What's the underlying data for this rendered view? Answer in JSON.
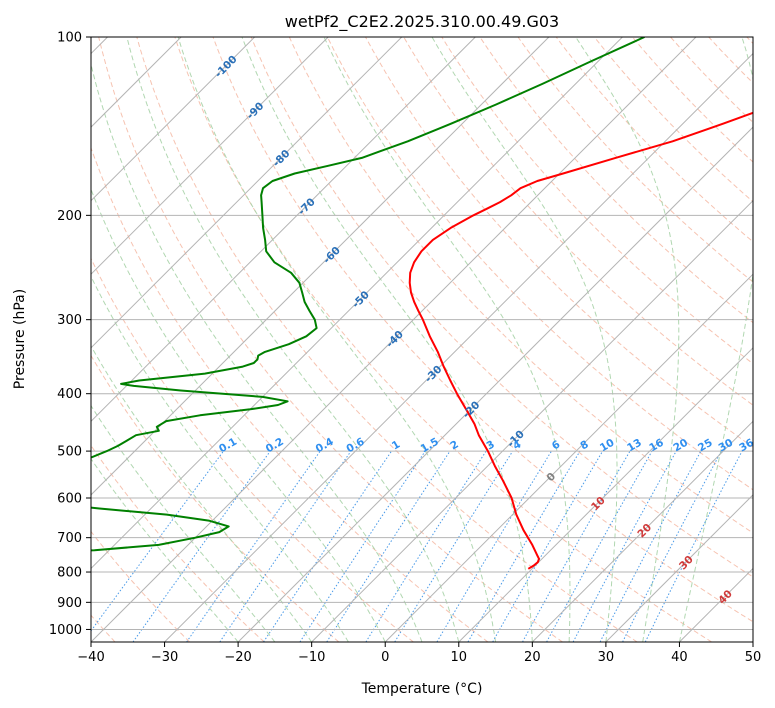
{
  "chart_data": {
    "type": "line",
    "subtype": "skew-t log-p diagram",
    "title": "wetPf2_C2E2.2025.310.00.49.G03",
    "xlabel": "Temperature (°C)",
    "ylabel": "Pressure (hPa)",
    "xlim": [
      -40,
      50
    ],
    "ylim": [
      1050,
      100
    ],
    "y_scale": "log",
    "grid": true,
    "x_ticks": [
      "−40",
      "−30",
      "−20",
      "−10",
      "0",
      "10",
      "20",
      "30",
      "40",
      "50"
    ],
    "y_ticks": [
      "100",
      "200",
      "300",
      "400",
      "500",
      "600",
      "700",
      "800",
      "900",
      "1000"
    ],
    "y_tick_values": [
      100,
      200,
      300,
      400,
      500,
      600,
      700,
      800,
      900,
      1000
    ],
    "isotherm_labels": [
      "-100",
      "-90",
      "-80",
      "-70",
      "-60",
      "-50",
      "-40",
      "-30",
      "-20",
      "-10",
      "0",
      "10",
      "20",
      "30",
      "40"
    ],
    "mixing_ratio_labels": [
      "0.1",
      "0.2",
      "0.4",
      "0.6",
      "1",
      "1.5",
      "2",
      "3",
      "4",
      "6",
      "8",
      "10",
      "13",
      "16",
      "20",
      "25",
      "30",
      "36"
    ],
    "series": [
      {
        "key": "temperature",
        "color": "#ff0000",
        "points": [
          [
            100,
            -9.0
          ],
          [
            110,
            -14.0
          ],
          [
            120,
            -17.0
          ],
          [
            130,
            -20.0
          ],
          [
            140,
            -24.5
          ],
          [
            150,
            -29.0
          ],
          [
            160,
            -34.5
          ],
          [
            170,
            -39.5
          ],
          [
            175,
            -42.0
          ],
          [
            180,
            -43.3
          ],
          [
            185,
            -43.6
          ],
          [
            190,
            -44.2
          ],
          [
            195,
            -45.1
          ],
          [
            200,
            -46.0
          ],
          [
            210,
            -47.4
          ],
          [
            220,
            -48.2
          ],
          [
            230,
            -48.2
          ],
          [
            240,
            -47.7
          ],
          [
            250,
            -46.8
          ],
          [
            260,
            -45.5
          ],
          [
            270,
            -44.0
          ],
          [
            280,
            -42.3
          ],
          [
            290,
            -40.5
          ],
          [
            300,
            -38.7
          ],
          [
            320,
            -35.5
          ],
          [
            340,
            -32.3
          ],
          [
            360,
            -29.5
          ],
          [
            380,
            -26.7
          ],
          [
            400,
            -24.0
          ],
          [
            430,
            -20.0
          ],
          [
            450,
            -17.5
          ],
          [
            470,
            -15.4
          ],
          [
            500,
            -12.0
          ],
          [
            530,
            -9.0
          ],
          [
            560,
            -6.0
          ],
          [
            600,
            -2.4
          ],
          [
            640,
            0.5
          ],
          [
            680,
            3.6
          ],
          [
            720,
            6.8
          ],
          [
            750,
            8.9
          ],
          [
            760,
            9.6
          ],
          [
            770,
            9.9
          ],
          [
            780,
            9.8
          ],
          [
            790,
            9.5
          ]
        ]
      },
      {
        "key": "dewpoint",
        "color": "#008000",
        "points": [
          [
            100,
            -47.0
          ],
          [
            110,
            -51.0
          ],
          [
            120,
            -54.5
          ],
          [
            130,
            -58.0
          ],
          [
            140,
            -61.5
          ],
          [
            150,
            -65.0
          ],
          [
            160,
            -69.0
          ],
          [
            165,
            -72.5
          ],
          [
            170,
            -76.0
          ],
          [
            175,
            -78.0
          ],
          [
            180,
            -78.3
          ],
          [
            185,
            -77.6
          ],
          [
            190,
            -76.6
          ],
          [
            200,
            -74.7
          ],
          [
            210,
            -72.9
          ],
          [
            220,
            -71.0
          ],
          [
            230,
            -69.3
          ],
          [
            240,
            -66.7
          ],
          [
            250,
            -63.0
          ],
          [
            260,
            -60.5
          ],
          [
            270,
            -58.8
          ],
          [
            280,
            -57.2
          ],
          [
            290,
            -55.3
          ],
          [
            300,
            -53.4
          ],
          [
            310,
            -52.0
          ],
          [
            320,
            -52.3
          ],
          [
            330,
            -53.6
          ],
          [
            340,
            -55.8
          ],
          [
            345,
            -56.2
          ],
          [
            350,
            -55.8
          ],
          [
            355,
            -55.8
          ],
          [
            360,
            -56.8
          ],
          [
            370,
            -61.0
          ],
          [
            380,
            -69.0
          ],
          [
            385,
            -71.0
          ],
          [
            388,
            -69.0
          ],
          [
            395,
            -62.0
          ],
          [
            405,
            -50.0
          ],
          [
            412,
            -46.0
          ],
          [
            418,
            -46.8
          ],
          [
            425,
            -50.0
          ],
          [
            435,
            -56.0
          ],
          [
            445,
            -59.8
          ],
          [
            455,
            -60.3
          ],
          [
            462,
            -59.5
          ],
          [
            470,
            -62.0
          ],
          [
            480,
            -62.5
          ],
          [
            490,
            -63.0
          ],
          [
            500,
            -63.8
          ],
          [
            520,
            -65.8
          ],
          [
            540,
            -67.7
          ],
          [
            560,
            -67.0
          ],
          [
            580,
            -65.6
          ],
          [
            600,
            -64.3
          ],
          [
            615,
            -63.0
          ],
          [
            625,
            -57.0
          ],
          [
            640,
            -47.0
          ],
          [
            655,
            -40.5
          ],
          [
            670,
            -37.0
          ],
          [
            685,
            -37.5
          ],
          [
            700,
            -40.0
          ],
          [
            720,
            -44.0
          ],
          [
            735,
            -52.0
          ],
          [
            745,
            -60.0
          ],
          [
            755,
            -66.0
          ],
          [
            762,
            -66.5
          ],
          [
            770,
            -60.0
          ],
          [
            780,
            -57.0
          ]
        ]
      }
    ]
  },
  "colors": {
    "temperature": "#ff0000",
    "dewpoint": "#008000",
    "isotherm_grid": "#b4b4b4",
    "isobar_grid": "#b4b4b4",
    "dry_adiabat": "#f5b8a3",
    "moist_adiabat": "#a8d3a8",
    "mixing_ratio": "#4a9ae8",
    "isotherm_label": "#2a70b8",
    "mixing_label": "#2f8ff0",
    "adiabat_label": "#d03a3a"
  }
}
